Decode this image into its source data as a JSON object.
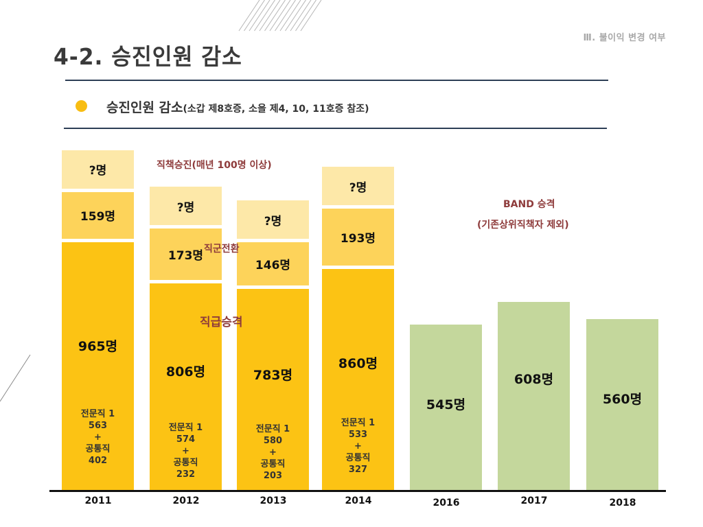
{
  "header": {
    "section": "Ⅲ. 불이익 변경 여부",
    "title": "4-2.  승진인원 감소",
    "subtitle": "승진인원 감소",
    "subtitle_note": "(소갑 제8호증, 소을 제4, 10, 11호증 참조)"
  },
  "colors": {
    "accent_bullet": "#f8bd12",
    "bar_main": "#fcc314",
    "bar_mid": "#fdd35a",
    "bar_unknown": "#fde8a8",
    "bar_band": "#c4d79c",
    "annotation": "#8e3b3b",
    "rule": "#2c3e55"
  },
  "chart_data": {
    "type": "bar",
    "title": "승진인원 감소",
    "xlabel": "",
    "ylabel": "",
    "unit": "명",
    "categories": [
      "2011",
      "2012",
      "2013",
      "2014",
      "2016",
      "2017",
      "2018"
    ],
    "series": [
      {
        "name": "직급승격",
        "values": [
          965,
          806,
          783,
          860,
          null,
          null,
          null
        ],
        "labels": [
          "965명",
          "806명",
          "783명",
          "860명",
          null,
          null,
          null
        ]
      },
      {
        "name": "직군전환",
        "values": [
          159,
          173,
          146,
          193,
          null,
          null,
          null
        ],
        "labels": [
          "159명",
          "173명",
          "146명",
          "193명",
          null,
          null,
          null
        ]
      },
      {
        "name": "직책승진",
        "values": [
          null,
          null,
          null,
          null,
          null,
          null,
          null
        ],
        "labels": [
          "?명",
          "?명",
          "?명",
          "?명",
          null,
          null,
          null
        ]
      },
      {
        "name": "BAND 승격",
        "values": [
          null,
          null,
          null,
          null,
          545,
          608,
          560
        ],
        "labels": [
          null,
          null,
          null,
          null,
          "545명",
          "608명",
          "560명"
        ]
      }
    ],
    "breakdown": [
      {
        "year": "2011",
        "line1": "전문직 1",
        "v1": "563",
        "plus": "+",
        "line2": "공통직",
        "v2": "402"
      },
      {
        "year": "2012",
        "line1": "전문직 1",
        "v1": "574",
        "plus": "+",
        "line2": "공통직",
        "v2": "232"
      },
      {
        "year": "2013",
        "line1": "전문직 1",
        "v1": "580",
        "plus": "+",
        "line2": "공통직",
        "v2": "203"
      },
      {
        "year": "2014",
        "line1": "전문직 1",
        "v1": "533",
        "plus": "+",
        "line2": "공통직",
        "v2": "327"
      }
    ],
    "annotations": {
      "position_promo": "직책승진(매년 100명 이상)",
      "job_transfer": "직군전환",
      "grade_promo": "직급승격",
      "band_line1": "BAND  승격",
      "band_line2": "(기존상위직책자 제외)"
    },
    "grid": false,
    "legend": "none"
  }
}
